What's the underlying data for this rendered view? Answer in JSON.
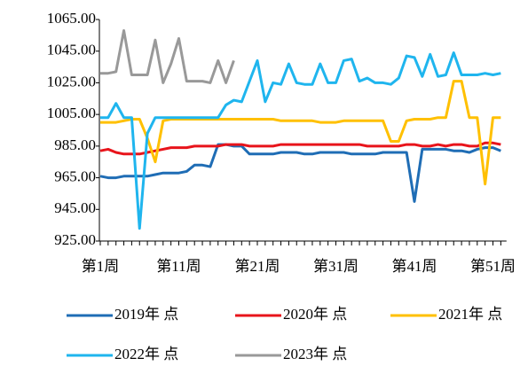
{
  "chart_data": {
    "type": "line",
    "categories": [
      "第1周",
      null,
      null,
      null,
      null,
      null,
      null,
      null,
      null,
      null,
      "第11周",
      null,
      null,
      null,
      null,
      null,
      null,
      null,
      null,
      null,
      "第21周",
      null,
      null,
      null,
      null,
      null,
      null,
      null,
      null,
      null,
      "第31周",
      null,
      null,
      null,
      null,
      null,
      null,
      null,
      null,
      null,
      "第41周",
      null,
      null,
      null,
      null,
      null,
      null,
      null,
      null,
      null,
      "第51周",
      null
    ],
    "series": [
      {
        "name": "2019年 点",
        "color": "#1f6db5",
        "values": [
          966,
          965,
          965,
          966,
          966,
          966,
          966,
          967,
          968,
          968,
          968,
          969,
          973,
          973,
          972,
          986,
          986,
          985,
          985,
          980,
          980,
          980,
          980,
          981,
          981,
          981,
          980,
          980,
          981,
          981,
          981,
          981,
          980,
          980,
          980,
          980,
          981,
          981,
          981,
          981,
          950,
          983,
          983,
          983,
          983,
          982,
          982,
          981,
          983,
          984,
          984,
          982
        ]
      },
      {
        "name": "2020年 点",
        "color": "#e8141b",
        "values": [
          982,
          983,
          981,
          980,
          980,
          980,
          981,
          982,
          983,
          984,
          984,
          984,
          985,
          985,
          985,
          985,
          986,
          986,
          986,
          985,
          985,
          985,
          985,
          986,
          986,
          986,
          986,
          986,
          986,
          986,
          986,
          986,
          986,
          986,
          985,
          985,
          985,
          985,
          985,
          986,
          986,
          985,
          985,
          986,
          985,
          986,
          986,
          985,
          985,
          987,
          987,
          986
        ]
      },
      {
        "name": "2021年 点",
        "color": "#ffc000",
        "values": [
          1000,
          1000,
          1000,
          1001,
          1002,
          1002,
          990,
          975,
          1001,
          1002,
          1002,
          1002,
          1002,
          1002,
          1002,
          1002,
          1002,
          1002,
          1002,
          1002,
          1002,
          1002,
          1002,
          1001,
          1001,
          1001,
          1001,
          1001,
          1000,
          1000,
          1000,
          1001,
          1001,
          1001,
          1001,
          1001,
          1001,
          988,
          988,
          1001,
          1002,
          1002,
          1002,
          1003,
          1003,
          1026,
          1026,
          1003,
          1003,
          961,
          1003,
          1003
        ]
      },
      {
        "name": "2022年 点",
        "color": "#1fb5ee",
        "values": [
          1003,
          1003,
          1012,
          1003,
          1003,
          933,
          993,
          1003,
          1003,
          1003,
          1003,
          1003,
          1003,
          1003,
          1003,
          1003,
          1011,
          1014,
          1013,
          1026,
          1039,
          1013,
          1025,
          1024,
          1037,
          1025,
          1024,
          1024,
          1037,
          1025,
          1025,
          1039,
          1040,
          1026,
          1028,
          1025,
          1025,
          1024,
          1028,
          1042,
          1041,
          1029,
          1043,
          1029,
          1030,
          1044,
          1030,
          1030,
          1030,
          1031,
          1030,
          1031
        ]
      },
      {
        "name": "2023年 点",
        "color": "#999999",
        "values": [
          1031,
          1031,
          1032,
          1058,
          1030,
          1030,
          1030,
          1052,
          1025,
          1037,
          1053,
          1026,
          1026,
          1026,
          1025,
          1039,
          1025,
          1039,
          null,
          null,
          null,
          null,
          null,
          null,
          null,
          null,
          null,
          null,
          null,
          null,
          null,
          null,
          null,
          null,
          null,
          null,
          null,
          null,
          null,
          null,
          null,
          null,
          null,
          null,
          null,
          null,
          null,
          null,
          null,
          null,
          null,
          null
        ]
      }
    ],
    "ylim": [
      925,
      1065
    ],
    "yticks": [
      {
        "value": 925,
        "label": "925.00"
      },
      {
        "value": 945,
        "label": "945.00"
      },
      {
        "value": 965,
        "label": "965.00"
      },
      {
        "value": 985,
        "label": "985.00"
      },
      {
        "value": 1005,
        "label": "1005.00"
      },
      {
        "value": 1025,
        "label": "1025.00"
      },
      {
        "value": 1045,
        "label": "1045.00"
      },
      {
        "value": 1065,
        "label": "1065.00"
      }
    ],
    "legend": "bottom"
  }
}
